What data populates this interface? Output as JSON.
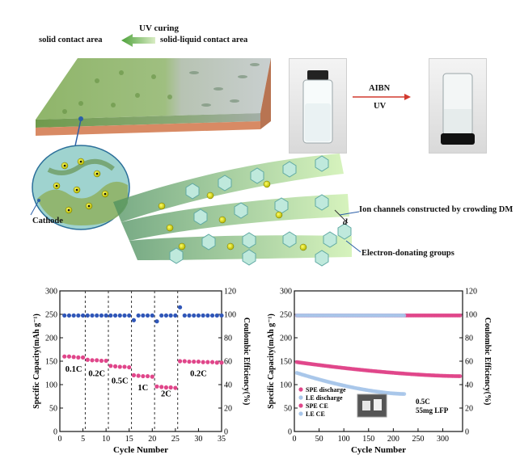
{
  "schematic": {
    "uv_curing_label": "UV curing",
    "solid_contact_label": "solid contact area",
    "solid_liquid_label": "solid-liquid contact area",
    "cathode_label": "Cathode",
    "ion_channels_label": "Ion channels constructed by crowding DM",
    "electron_groups_label": "Electron-donating groups",
    "d_label": "d"
  },
  "reaction": {
    "initiator_label": "AIBN",
    "condition_label": "UV"
  },
  "chart_data": [
    {
      "type": "scatter",
      "xlabel": "Cycle Number",
      "ylabel": "Specific Capacity(mAh g⁻¹)",
      "y2label": "Coulombic Efficiency(%)",
      "xlim": [
        0,
        35
      ],
      "ylim": [
        0,
        300
      ],
      "y2lim": [
        0,
        120
      ],
      "xticks": [
        "0",
        "5",
        "10",
        "15",
        "20",
        "25",
        "30",
        "35"
      ],
      "yticks": [
        "0",
        "50",
        "100",
        "150",
        "200",
        "250",
        "300"
      ],
      "y2ticks": [
        "0",
        "20",
        "40",
        "60",
        "80",
        "100",
        "120"
      ],
      "rate_labels": [
        {
          "text": "0.1C",
          "x": 3,
          "y": 128
        },
        {
          "text": "0.2C",
          "x": 8,
          "y": 118
        },
        {
          "text": "0.5C",
          "x": 13,
          "y": 103
        },
        {
          "text": "1C",
          "x": 18,
          "y": 88
        },
        {
          "text": "2C",
          "x": 23,
          "y": 75
        },
        {
          "text": "0.2C",
          "x": 30,
          "y": 118
        }
      ],
      "dividers": [
        5.5,
        10.5,
        15.5,
        20.5,
        25.5
      ],
      "series": [
        {
          "axis": "left",
          "color": "#e0468a",
          "values": [
            [
              1,
              160
            ],
            [
              2,
              160
            ],
            [
              3,
              159
            ],
            [
              4,
              158
            ],
            [
              5,
              158
            ],
            [
              6,
              153
            ],
            [
              7,
              152
            ],
            [
              8,
              152
            ],
            [
              9,
              151
            ],
            [
              10,
              151
            ],
            [
              11,
              140
            ],
            [
              12,
              139
            ],
            [
              13,
              138
            ],
            [
              14,
              138
            ],
            [
              15,
              137
            ],
            [
              16,
              120
            ],
            [
              17,
              119
            ],
            [
              18,
              118
            ],
            [
              19,
              118
            ],
            [
              20,
              117
            ],
            [
              21,
              96
            ],
            [
              22,
              95
            ],
            [
              23,
              94
            ],
            [
              24,
              94
            ],
            [
              25,
              93
            ],
            [
              26,
              150
            ],
            [
              27,
              150
            ],
            [
              28,
              149
            ],
            [
              29,
              149
            ],
            [
              30,
              149
            ],
            [
              31,
              148
            ],
            [
              32,
              148
            ],
            [
              33,
              148
            ],
            [
              34,
              147
            ],
            [
              35,
              147
            ]
          ]
        },
        {
          "axis": "right",
          "color": "#2f56b8",
          "values": [
            [
              1,
              99
            ],
            [
              2,
              99
            ],
            [
              3,
              99
            ],
            [
              4,
              99
            ],
            [
              5,
              99
            ],
            [
              6,
              99
            ],
            [
              7,
              99
            ],
            [
              8,
              99
            ],
            [
              9,
              99
            ],
            [
              10,
              99
            ],
            [
              11,
              99
            ],
            [
              12,
              99
            ],
            [
              13,
              99
            ],
            [
              14,
              99
            ],
            [
              15,
              99
            ],
            [
              16,
              95
            ],
            [
              17,
              99
            ],
            [
              18,
              99
            ],
            [
              19,
              99
            ],
            [
              20,
              99
            ],
            [
              21,
              94
            ],
            [
              22,
              99
            ],
            [
              23,
              99
            ],
            [
              24,
              99
            ],
            [
              25,
              99
            ],
            [
              26,
              106
            ],
            [
              27,
              99
            ],
            [
              28,
              99
            ],
            [
              29,
              99
            ],
            [
              30,
              99
            ],
            [
              31,
              99
            ],
            [
              32,
              99
            ],
            [
              33,
              99
            ],
            [
              34,
              99
            ],
            [
              35,
              99
            ]
          ]
        }
      ]
    },
    {
      "type": "scatter",
      "xlabel": "Cycle Number",
      "ylabel": "Specific Capacity(mAh g⁻¹)",
      "y2label": "Coulombic Efficiency(%)",
      "xlim": [
        0,
        340
      ],
      "ylim": [
        0,
        300
      ],
      "y2lim": [
        0,
        120
      ],
      "xticks": [
        "0",
        "50",
        "100",
        "150",
        "200",
        "250",
        "300"
      ],
      "xtick_values": [
        0,
        50,
        100,
        150,
        200,
        250,
        300
      ],
      "yticks": [
        "0",
        "50",
        "100",
        "150",
        "200",
        "250",
        "300"
      ],
      "y2ticks": [
        "0",
        "20",
        "40",
        "60",
        "80",
        "100",
        "120"
      ],
      "annotation": [
        "0.5C",
        "55mg LFP"
      ],
      "series": [
        {
          "name": "SPE discharge",
          "axis": "left",
          "color": "#e0468a",
          "start": [
            5,
            148
          ],
          "end": [
            335,
            118
          ],
          "n": 110
        },
        {
          "name": "LE discharge",
          "axis": "left",
          "color": "#a8c6ea",
          "start": [
            5,
            125
          ],
          "end": [
            222,
            80
          ],
          "n": 70
        },
        {
          "name": "SPE CE",
          "axis": "right",
          "color": "#e0468a",
          "start": [
            5,
            99
          ],
          "end": [
            335,
            99
          ],
          "n": 110
        },
        {
          "name": "LE CE",
          "axis": "right",
          "color": "#a8c6ea",
          "start": [
            5,
            99
          ],
          "end": [
            222,
            99
          ],
          "n": 70
        }
      ]
    }
  ]
}
